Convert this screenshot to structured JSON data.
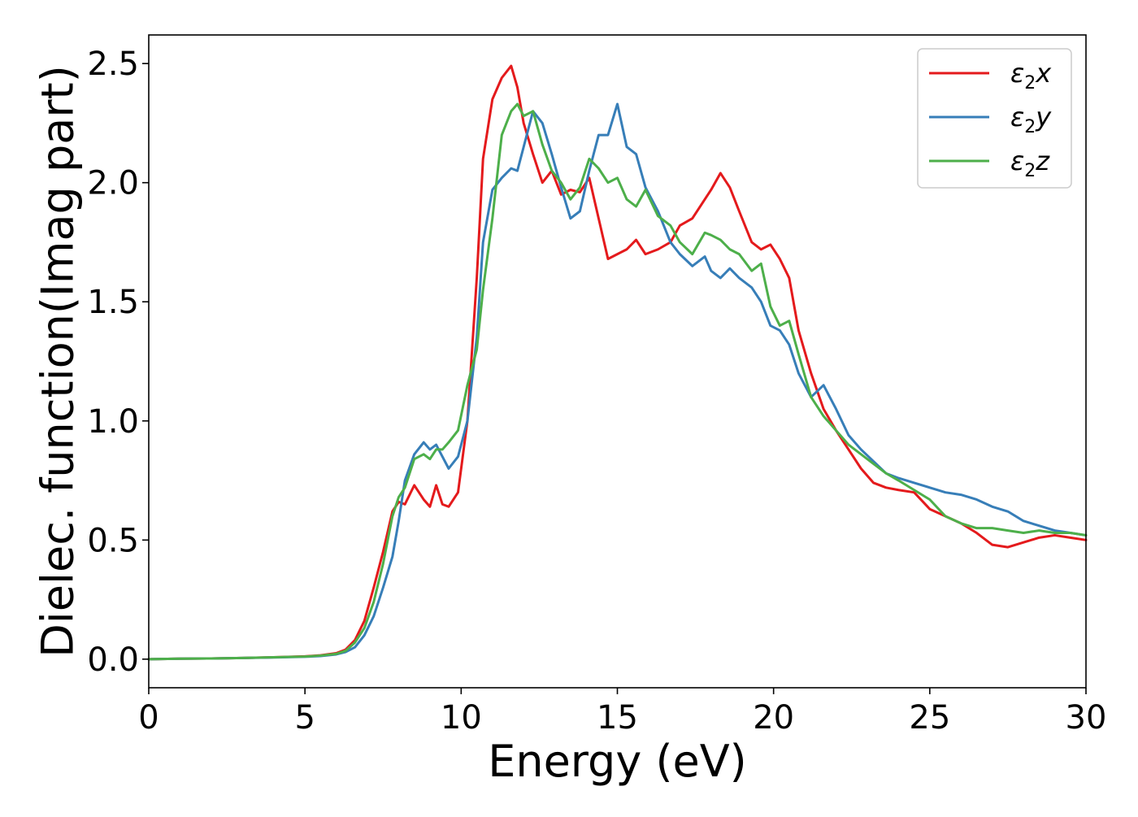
{
  "chart_data": {
    "type": "line",
    "title": "",
    "xlabel": "Energy (eV)",
    "ylabel": "Dielec. function(Imag part)",
    "xlim": [
      0,
      30
    ],
    "ylim": [
      -0.12,
      2.62
    ],
    "xticks": [
      0,
      5,
      10,
      15,
      20,
      25,
      30
    ],
    "xtick_labels": [
      "0",
      "5",
      "10",
      "15",
      "20",
      "25",
      "30"
    ],
    "yticks": [
      0.0,
      0.5,
      1.0,
      1.5,
      2.0,
      2.5
    ],
    "ytick_labels": [
      "0.0",
      "0.5",
      "1.0",
      "1.5",
      "2.0",
      "2.5"
    ],
    "grid": false,
    "legend_position": "top-right",
    "series": [
      {
        "name": "ε2x",
        "name_base": "ε",
        "name_sub": "2",
        "name_var": "x",
        "color": "#e41a1c",
        "x": [
          0,
          1,
          2,
          3,
          4,
          5,
          5.5,
          6,
          6.3,
          6.6,
          6.9,
          7.2,
          7.5,
          7.8,
          8.0,
          8.2,
          8.5,
          8.8,
          9.0,
          9.2,
          9.4,
          9.6,
          9.9,
          10.2,
          10.5,
          10.7,
          11.0,
          11.3,
          11.6,
          11.8,
          12.0,
          12.3,
          12.6,
          12.9,
          13.2,
          13.5,
          13.8,
          14.1,
          14.4,
          14.7,
          15.0,
          15.3,
          15.6,
          15.9,
          16.3,
          16.7,
          17.0,
          17.4,
          17.8,
          18.0,
          18.3,
          18.6,
          18.9,
          19.3,
          19.6,
          19.9,
          20.2,
          20.5,
          20.8,
          21.2,
          21.6,
          22.0,
          22.4,
          22.8,
          23.2,
          23.6,
          24.0,
          24.5,
          25.0,
          25.5,
          26.0,
          26.5,
          27.0,
          27.5,
          28.0,
          28.5,
          29.0,
          29.5,
          30
        ],
        "y": [
          0.0,
          0.002,
          0.003,
          0.005,
          0.008,
          0.012,
          0.016,
          0.025,
          0.04,
          0.08,
          0.16,
          0.3,
          0.45,
          0.62,
          0.66,
          0.65,
          0.73,
          0.67,
          0.64,
          0.73,
          0.65,
          0.64,
          0.7,
          1.0,
          1.6,
          2.1,
          2.35,
          2.44,
          2.49,
          2.4,
          2.25,
          2.12,
          2.0,
          2.05,
          1.95,
          1.97,
          1.96,
          2.02,
          1.85,
          1.68,
          1.7,
          1.72,
          1.76,
          1.7,
          1.72,
          1.75,
          1.82,
          1.85,
          1.93,
          1.97,
          2.04,
          1.98,
          1.88,
          1.75,
          1.72,
          1.74,
          1.68,
          1.6,
          1.38,
          1.2,
          1.05,
          0.96,
          0.88,
          0.8,
          0.74,
          0.72,
          0.71,
          0.7,
          0.63,
          0.6,
          0.57,
          0.53,
          0.48,
          0.47,
          0.49,
          0.51,
          0.52,
          0.51,
          0.5
        ]
      },
      {
        "name": "ε2y",
        "name_base": "ε",
        "name_sub": "2",
        "name_var": "y",
        "color": "#377eb8",
        "x": [
          0,
          1,
          2,
          3,
          4,
          5,
          5.5,
          6,
          6.3,
          6.6,
          6.9,
          7.2,
          7.5,
          7.8,
          8.0,
          8.2,
          8.5,
          8.8,
          9.0,
          9.2,
          9.4,
          9.6,
          9.9,
          10.2,
          10.5,
          10.7,
          11.0,
          11.3,
          11.6,
          11.8,
          12.0,
          12.3,
          12.6,
          12.9,
          13.2,
          13.5,
          13.8,
          14.1,
          14.4,
          14.7,
          15.0,
          15.3,
          15.6,
          15.9,
          16.3,
          16.7,
          17.0,
          17.4,
          17.8,
          18.0,
          18.3,
          18.6,
          18.9,
          19.3,
          19.6,
          19.9,
          20.2,
          20.5,
          20.8,
          21.2,
          21.6,
          22.0,
          22.4,
          22.8,
          23.2,
          23.6,
          24.0,
          24.5,
          25.0,
          25.5,
          26.0,
          26.5,
          27.0,
          27.5,
          28.0,
          28.5,
          29.0,
          29.5,
          30
        ],
        "y": [
          0.0,
          0.002,
          0.003,
          0.005,
          0.007,
          0.01,
          0.013,
          0.02,
          0.03,
          0.05,
          0.1,
          0.18,
          0.3,
          0.43,
          0.58,
          0.75,
          0.86,
          0.91,
          0.88,
          0.9,
          0.85,
          0.8,
          0.85,
          1.0,
          1.35,
          1.75,
          1.97,
          2.02,
          2.06,
          2.05,
          2.15,
          2.3,
          2.25,
          2.12,
          1.98,
          1.85,
          1.88,
          2.05,
          2.2,
          2.2,
          2.33,
          2.15,
          2.12,
          1.98,
          1.88,
          1.75,
          1.7,
          1.65,
          1.69,
          1.63,
          1.6,
          1.64,
          1.6,
          1.56,
          1.5,
          1.4,
          1.38,
          1.32,
          1.2,
          1.1,
          1.15,
          1.05,
          0.94,
          0.88,
          0.83,
          0.78,
          0.76,
          0.74,
          0.72,
          0.7,
          0.69,
          0.67,
          0.64,
          0.62,
          0.58,
          0.56,
          0.54,
          0.53,
          0.52
        ]
      },
      {
        "name": "ε2z",
        "name_base": "ε",
        "name_sub": "2",
        "name_var": "z",
        "color": "#4daf4a",
        "x": [
          0,
          1,
          2,
          3,
          4,
          5,
          5.5,
          6,
          6.3,
          6.6,
          6.9,
          7.2,
          7.5,
          7.8,
          8.0,
          8.2,
          8.5,
          8.8,
          9.0,
          9.2,
          9.4,
          9.6,
          9.9,
          10.2,
          10.5,
          10.7,
          11.0,
          11.3,
          11.6,
          11.8,
          12.0,
          12.3,
          12.6,
          12.9,
          13.2,
          13.5,
          13.8,
          14.1,
          14.4,
          14.7,
          15.0,
          15.3,
          15.6,
          15.9,
          16.3,
          16.7,
          17.0,
          17.4,
          17.8,
          18.0,
          18.3,
          18.6,
          18.9,
          19.3,
          19.6,
          19.9,
          20.2,
          20.5,
          20.8,
          21.2,
          21.6,
          22.0,
          22.4,
          22.8,
          23.2,
          23.6,
          24.0,
          24.5,
          25.0,
          25.5,
          26.0,
          26.5,
          27.0,
          27.5,
          28.0,
          28.5,
          29.0,
          29.5,
          30
        ],
        "y": [
          0.0,
          0.002,
          0.003,
          0.005,
          0.008,
          0.011,
          0.015,
          0.022,
          0.035,
          0.07,
          0.13,
          0.24,
          0.4,
          0.6,
          0.68,
          0.72,
          0.84,
          0.86,
          0.84,
          0.88,
          0.88,
          0.91,
          0.96,
          1.15,
          1.3,
          1.55,
          1.85,
          2.2,
          2.3,
          2.33,
          2.28,
          2.3,
          2.16,
          2.05,
          2.0,
          1.93,
          1.98,
          2.1,
          2.06,
          2.0,
          2.02,
          1.93,
          1.9,
          1.97,
          1.86,
          1.82,
          1.75,
          1.7,
          1.79,
          1.78,
          1.76,
          1.72,
          1.7,
          1.63,
          1.66,
          1.48,
          1.4,
          1.42,
          1.28,
          1.1,
          1.02,
          0.96,
          0.9,
          0.86,
          0.82,
          0.78,
          0.75,
          0.71,
          0.67,
          0.6,
          0.57,
          0.55,
          0.55,
          0.54,
          0.53,
          0.54,
          0.53,
          0.53,
          0.52
        ]
      }
    ]
  }
}
